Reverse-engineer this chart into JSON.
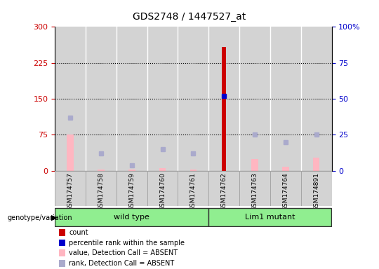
{
  "title": "GDS2748 / 1447527_at",
  "samples": [
    "GSM174757",
    "GSM174758",
    "GSM174759",
    "GSM174760",
    "GSM174761",
    "GSM174762",
    "GSM174763",
    "GSM174764",
    "GSM174891"
  ],
  "groups": [
    {
      "name": "wild type",
      "start": 0,
      "end": 4,
      "color": "#90EE90"
    },
    {
      "name": "Lim1 mutant",
      "start": 5,
      "end": 8,
      "color": "#90EE90"
    }
  ],
  "count_values": [
    null,
    null,
    null,
    null,
    null,
    258,
    null,
    null,
    null
  ],
  "count_absent_values": [
    76,
    3,
    2,
    5,
    3,
    null,
    25,
    8,
    27
  ],
  "rank_values": [
    null,
    null,
    null,
    null,
    null,
    52,
    null,
    null,
    null
  ],
  "rank_absent_values": [
    37,
    12,
    4,
    15,
    12,
    null,
    25,
    20,
    25
  ],
  "left_ylim": [
    0,
    300
  ],
  "right_ylim": [
    0,
    100
  ],
  "left_yticks": [
    0,
    75,
    150,
    225,
    300
  ],
  "right_yticks": [
    0,
    25,
    50,
    75,
    100
  ],
  "left_tick_labels": [
    "0",
    "75",
    "150",
    "225",
    "300"
  ],
  "right_tick_labels": [
    "0",
    "25",
    "50",
    "75",
    "100%"
  ],
  "count_color": "#CC0000",
  "count_absent_color": "#FFB6C1",
  "rank_color": "#0000CC",
  "rank_absent_color": "#AAAACC",
  "left_label_color": "#CC0000",
  "right_label_color": "#0000CC",
  "col_bg_color": "#D3D3D3",
  "legend_items": [
    {
      "label": "count",
      "color": "#CC0000"
    },
    {
      "label": "percentile rank within the sample",
      "color": "#0000CC"
    },
    {
      "label": "value, Detection Call = ABSENT",
      "color": "#FFB6C1"
    },
    {
      "label": "rank, Detection Call = ABSENT",
      "color": "#AAAACC"
    }
  ]
}
